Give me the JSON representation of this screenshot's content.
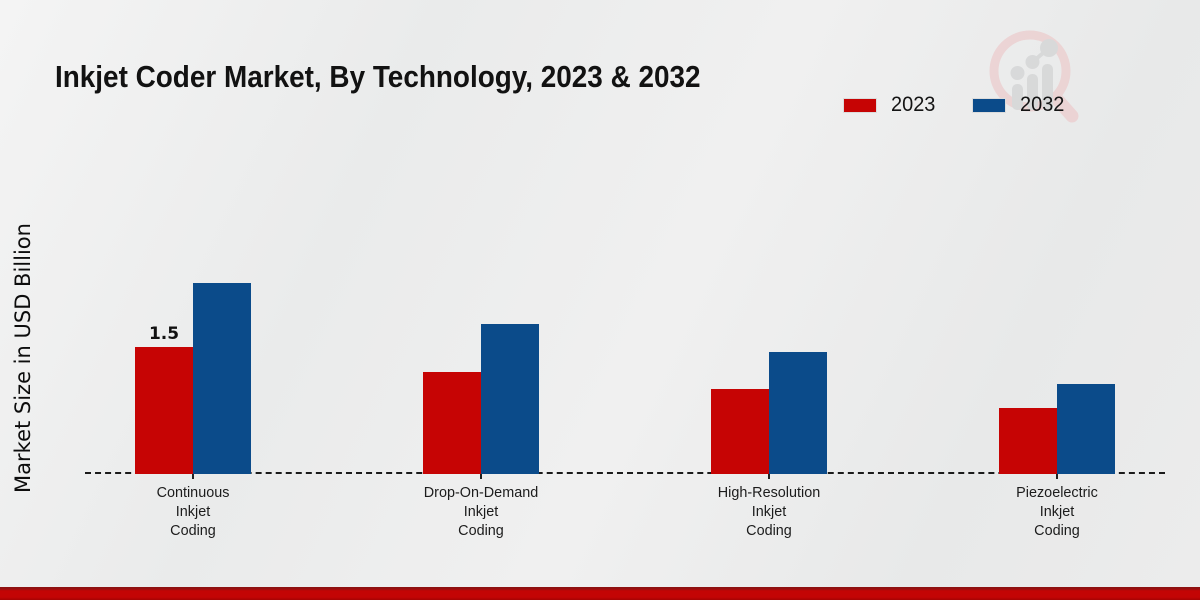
{
  "title": "Inkjet Coder Market, By Technology, 2023 & 2032",
  "ylabel": "Market Size in USD Billion",
  "watermark_icon": "market-research-magnifier-logo",
  "colors": {
    "series_2023": "#c60404",
    "series_2032": "#0b4b8a",
    "footer_band": "#c30505",
    "background": "#ebecec",
    "axis": "#1b1b1b"
  },
  "chart_data": {
    "type": "bar",
    "title": "Inkjet Coder Market, By Technology, 2023 & 2032",
    "xlabel": "",
    "ylabel": "Market Size in USD Billion",
    "categories": [
      "Continuous Inkjet Coding",
      "Drop-On-Demand Inkjet Coding",
      "High-Resolution Inkjet Coding",
      "Piezoelectric Inkjet Coding"
    ],
    "series": [
      {
        "name": "2023",
        "color": "#c60404",
        "values": [
          1.5,
          1.2,
          1.0,
          0.78
        ]
      },
      {
        "name": "2032",
        "color": "#0b4b8a",
        "values": [
          2.26,
          1.77,
          1.44,
          1.06
        ]
      }
    ],
    "annotations": [
      {
        "series_index": 0,
        "category_index": 0,
        "text": "1.5"
      }
    ],
    "ylim": [
      0,
      2.5
    ],
    "grid": false,
    "legend_position": "top-right",
    "baseline_style": "black dashed line",
    "note": "Only the first 2023 bar carries a printed data label (1.5); other values estimated from bar heights."
  }
}
